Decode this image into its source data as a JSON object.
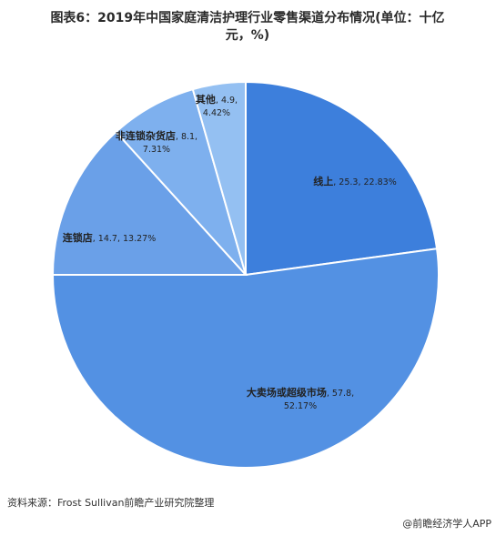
{
  "chart_data": {
    "type": "pie",
    "title": "图表6：2019年中国家庭清洁护理行业零售渠道分布情况(单位：十亿元，%)",
    "categories": [
      "线上",
      "大卖场或超级市场",
      "连锁店",
      "非连锁杂货店",
      "其他"
    ],
    "values": [
      25.3,
      57.8,
      14.7,
      8.1,
      4.9
    ],
    "value_labels": [
      ", 25.3, 22.83%",
      ", 57.8, 52.17%",
      ", 14.7, 13.27%",
      ", 8.1, 7.31%",
      ", 4.9, 4.42%"
    ],
    "colors": [
      "#3d7fdc",
      "#5391e3",
      "#6aa0e8",
      "#7eb0ee",
      "#94c0f2"
    ],
    "source": "资料来源：Frost Sullivan前瞻产业研究院整理",
    "brand": "@前瞻经济学人APP"
  }
}
